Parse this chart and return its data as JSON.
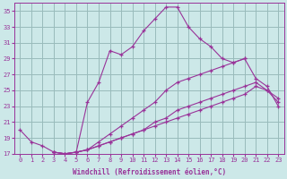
{
  "xlabel": "Windchill (Refroidissement éolien,°C)",
  "bg_color": "#cce8e8",
  "line_color": "#993399",
  "grid_color": "#99bbbb",
  "series": [
    {
      "x": [
        0,
        1,
        2,
        3,
        4,
        5,
        6,
        7,
        8,
        9,
        10,
        11,
        12,
        13,
        14,
        15,
        16,
        17,
        18,
        19,
        20,
        21,
        22,
        23
      ],
      "y": [
        20.0,
        18.5,
        18.0,
        17.2,
        17.0,
        17.2,
        23.5,
        26.0,
        30.0,
        29.5,
        30.5,
        32.5,
        34.0,
        35.5,
        35.5,
        33.0,
        31.5,
        30.5,
        29.0,
        28.5,
        29.0,
        null,
        null,
        null
      ]
    },
    {
      "x": [
        3,
        4,
        5,
        6,
        7,
        8,
        9,
        10,
        11,
        12,
        13,
        14,
        15,
        16,
        17,
        18,
        19,
        20,
        21,
        22,
        23
      ],
      "y": [
        17.2,
        17.0,
        17.2,
        17.5,
        18.5,
        19.5,
        20.5,
        21.5,
        22.5,
        23.5,
        25.0,
        26.0,
        26.5,
        27.0,
        27.5,
        28.0,
        28.5,
        29.0,
        26.5,
        25.5,
        23.0
      ]
    },
    {
      "x": [
        3,
        4,
        5,
        6,
        7,
        8,
        9,
        10,
        11,
        12,
        13,
        14,
        15,
        16,
        17,
        18,
        19,
        20,
        21,
        22,
        23
      ],
      "y": [
        17.2,
        17.0,
        17.2,
        17.5,
        18.0,
        18.5,
        19.0,
        19.5,
        20.0,
        21.0,
        21.5,
        22.5,
        23.0,
        23.5,
        24.0,
        24.5,
        25.0,
        25.5,
        26.0,
        25.0,
        24.0
      ]
    },
    {
      "x": [
        3,
        4,
        5,
        6,
        7,
        8,
        9,
        10,
        11,
        12,
        13,
        14,
        15,
        16,
        17,
        18,
        19,
        20,
        21,
        22,
        23
      ],
      "y": [
        17.2,
        17.0,
        17.2,
        17.5,
        18.0,
        18.5,
        19.0,
        19.5,
        20.0,
        20.5,
        21.0,
        21.5,
        22.0,
        22.5,
        23.0,
        23.5,
        24.0,
        24.5,
        25.5,
        25.0,
        23.5
      ]
    }
  ],
  "ylim": [
    17,
    36
  ],
  "xlim": [
    -0.5,
    23.5
  ],
  "yticks": [
    17,
    19,
    21,
    23,
    25,
    27,
    29,
    31,
    33,
    35
  ],
  "xticks": [
    0,
    1,
    2,
    3,
    4,
    5,
    6,
    7,
    8,
    9,
    10,
    11,
    12,
    13,
    14,
    15,
    16,
    17,
    18,
    19,
    20,
    21,
    22,
    23
  ]
}
